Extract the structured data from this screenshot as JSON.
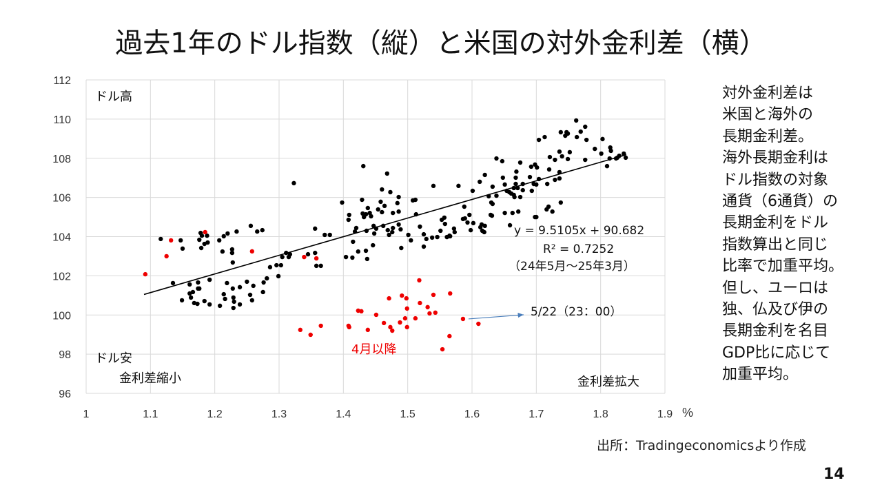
{
  "title": "過去1年のドル指数（縦）と米国の対外金利差（横）",
  "side_note": [
    "対外金利差は",
    "米国と海外の",
    "長期金利差。",
    "海外長期金利は",
    "ドル指数の対象",
    "通貨（6通貨）の",
    "長期金利をドル",
    "指数算出と同じ",
    "比率で加重平均。",
    "但し、ユーロは",
    "独、仏及び伊の",
    "長期金利を名目",
    "GDP比に応じて",
    "加重平均。"
  ],
  "source": "出所：Tradingeconomicsより作成",
  "page_number": "14",
  "colors": {
    "black_series": "#000000",
    "red_series": "#ee0000",
    "trend": "#000000",
    "arrow": "#4a7ebb",
    "grid": "#d9d9d9"
  },
  "chart_data": {
    "type": "scatter",
    "xlim": [
      1,
      1.9
    ],
    "ylim": [
      96,
      112
    ],
    "x_ticks": [
      "1",
      "1.1",
      "1.2",
      "1.3",
      "1.4",
      "1.5",
      "1.6",
      "1.7",
      "1.8",
      "1.9"
    ],
    "y_ticks": [
      "96",
      "98",
      "100",
      "102",
      "104",
      "106",
      "108",
      "110",
      "112"
    ],
    "x_unit": "%",
    "grid": true,
    "annotations": {
      "top_left": "ドル高",
      "bottom_left": "ドル安",
      "bottom_left_x": "金利差縮小",
      "bottom_right_x": "金利差拡大",
      "red_label": "4月以降",
      "equation": "y = 9.5105x + 90.682",
      "r2": "R² = 0.7252",
      "period": "（24年5月～25年3月）",
      "latest_label": "5/22（23：00）"
    },
    "trendline": {
      "slope": 9.5105,
      "intercept": 90.682,
      "x_range": [
        1.09,
        1.84
      ],
      "r2": 0.7252
    },
    "series": [
      {
        "name": "24年5月～25年3月",
        "color": "#000000",
        "points": [
          [
            1.116,
            103.88
          ],
          [
            1.147,
            103.81
          ],
          [
            1.15,
            103.39
          ],
          [
            1.178,
            104.19
          ],
          [
            1.18,
            104.05
          ],
          [
            1.188,
            104.05
          ],
          [
            1.176,
            103.84
          ],
          [
            1.179,
            103.42
          ],
          [
            1.184,
            103.63
          ],
          [
            1.189,
            103.7
          ],
          [
            1.207,
            103.81
          ],
          [
            1.214,
            104.02
          ],
          [
            1.22,
            104.16
          ],
          [
            1.234,
            104.26
          ],
          [
            1.256,
            104.55
          ],
          [
            1.266,
            104.26
          ],
          [
            1.274,
            104.33
          ],
          [
            1.212,
            103.24
          ],
          [
            1.227,
            103.35
          ],
          [
            1.227,
            103.17
          ],
          [
            1.228,
            102.68
          ],
          [
            1.356,
            104.41
          ],
          [
            1.371,
            104.09
          ],
          [
            1.379,
            104.09
          ],
          [
            1.356,
            103.17
          ],
          [
            1.345,
            103.1
          ],
          [
            1.358,
            102.51
          ],
          [
            1.365,
            102.51
          ],
          [
            1.311,
            103.17
          ],
          [
            1.317,
            103.1
          ],
          [
            1.305,
            102.96
          ],
          [
            1.315,
            102.96
          ],
          [
            1.303,
            102.54
          ],
          [
            1.296,
            102.54
          ],
          [
            1.286,
            102.44
          ],
          [
            1.299,
            101.98
          ],
          [
            1.281,
            101.87
          ],
          [
            1.276,
            101.66
          ],
          [
            1.275,
            101.17
          ],
          [
            1.26,
            101.49
          ],
          [
            1.25,
            101.7
          ],
          [
            1.239,
            101.42
          ],
          [
            1.228,
            101.35
          ],
          [
            1.219,
            101.63
          ],
          [
            1.214,
            101.06
          ],
          [
            1.216,
            100.82
          ],
          [
            1.229,
            100.89
          ],
          [
            1.23,
            100.68
          ],
          [
            1.229,
            100.36
          ],
          [
            1.239,
            100.54
          ],
          [
            1.208,
            100.47
          ],
          [
            1.192,
            100.54
          ],
          [
            1.184,
            100.71
          ],
          [
            1.192,
            101.8
          ],
          [
            1.174,
            101.66
          ],
          [
            1.174,
            101.35
          ],
          [
            1.176,
            101.35
          ],
          [
            1.161,
            101.56
          ],
          [
            1.135,
            101.63
          ],
          [
            1.161,
            101.1
          ],
          [
            1.166,
            101.17
          ],
          [
            1.163,
            100.89
          ],
          [
            1.149,
            100.75
          ],
          [
            1.168,
            100.61
          ],
          [
            1.173,
            100.57
          ],
          [
            1.255,
            101.03
          ],
          [
            1.258,
            100.75
          ],
          [
            1.323,
            106.73
          ],
          [
            1.431,
            107.6
          ],
          [
            1.468,
            107.22
          ],
          [
            1.54,
            106.59
          ],
          [
            1.398,
            105.74
          ],
          [
            1.429,
            105.88
          ],
          [
            1.46,
            106.41
          ],
          [
            1.473,
            106.27
          ],
          [
            1.486,
            106.02
          ],
          [
            1.458,
            105.78
          ],
          [
            1.484,
            105.71
          ],
          [
            1.508,
            105.85
          ],
          [
            1.512,
            105.88
          ],
          [
            1.438,
            105.46
          ],
          [
            1.454,
            105.39
          ],
          [
            1.464,
            105.57
          ],
          [
            1.46,
            105.25
          ],
          [
            1.477,
            105.21
          ],
          [
            1.486,
            105.28
          ],
          [
            1.409,
            105.11
          ],
          [
            1.408,
            104.86
          ],
          [
            1.43,
            105.18
          ],
          [
            1.432,
            105.0
          ],
          [
            1.435,
            105.14
          ],
          [
            1.441,
            105.21
          ],
          [
            1.443,
            105.04
          ],
          [
            1.513,
            105.14
          ],
          [
            1.42,
            104.44
          ],
          [
            1.418,
            104.26
          ],
          [
            1.436,
            104.3
          ],
          [
            1.447,
            104.55
          ],
          [
            1.451,
            104.41
          ],
          [
            1.448,
            104.16
          ],
          [
            1.462,
            104.55
          ],
          [
            1.469,
            104.33
          ],
          [
            1.477,
            104.44
          ],
          [
            1.476,
            104.23
          ],
          [
            1.471,
            104.09
          ],
          [
            1.486,
            104.62
          ],
          [
            1.489,
            104.37
          ],
          [
            1.519,
            104.51
          ],
          [
            1.501,
            104.09
          ],
          [
            1.505,
            103.81
          ],
          [
            1.525,
            104.12
          ],
          [
            1.529,
            103.88
          ],
          [
            1.538,
            103.95
          ],
          [
            1.546,
            103.98
          ],
          [
            1.551,
            104.3
          ],
          [
            1.553,
            104.86
          ],
          [
            1.557,
            104.97
          ],
          [
            1.558,
            104.65
          ],
          [
            1.561,
            103.98
          ],
          [
            1.566,
            104.02
          ],
          [
            1.572,
            104.41
          ],
          [
            1.415,
            103.74
          ],
          [
            1.446,
            103.56
          ],
          [
            1.49,
            103.42
          ],
          [
            1.525,
            103.49
          ],
          [
            1.423,
            103.24
          ],
          [
            1.435,
            103.28
          ],
          [
            1.404,
            102.96
          ],
          [
            1.414,
            102.93
          ],
          [
            1.437,
            102.86
          ],
          [
            1.638,
            107.99
          ],
          [
            1.647,
            107.85
          ],
          [
            1.675,
            107.78
          ],
          [
            1.721,
            108.06
          ],
          [
            1.729,
            107.92
          ],
          [
            1.736,
            108.34
          ],
          [
            1.74,
            108.1
          ],
          [
            1.749,
            107.96
          ],
          [
            1.692,
            107.57
          ],
          [
            1.698,
            107.68
          ],
          [
            1.701,
            107.53
          ],
          [
            1.72,
            107.43
          ],
          [
            1.669,
            107.32
          ],
          [
            1.62,
            107.15
          ],
          [
            1.579,
            106.59
          ],
          [
            1.612,
            106.8
          ],
          [
            1.601,
            106.34
          ],
          [
            1.648,
            107.01
          ],
          [
            1.668,
            107.01
          ],
          [
            1.69,
            107.04
          ],
          [
            1.704,
            106.94
          ],
          [
            1.632,
            106.55
          ],
          [
            1.651,
            106.66
          ],
          [
            1.668,
            106.69
          ],
          [
            1.679,
            106.69
          ],
          [
            1.736,
            107.29
          ],
          [
            1.736,
            106.97
          ],
          [
            1.729,
            106.9
          ],
          [
            1.696,
            106.69
          ],
          [
            1.7,
            106.66
          ],
          [
            1.717,
            106.69
          ],
          [
            1.665,
            106.48
          ],
          [
            1.671,
            106.48
          ],
          [
            1.654,
            106.34
          ],
          [
            1.658,
            106.27
          ],
          [
            1.661,
            106.2
          ],
          [
            1.665,
            106.13
          ],
          [
            1.666,
            106.02
          ],
          [
            1.675,
            106.02
          ],
          [
            1.679,
            106.37
          ],
          [
            1.693,
            106.34
          ],
          [
            1.626,
            106.06
          ],
          [
            1.638,
            106.09
          ],
          [
            1.63,
            105.74
          ],
          [
            1.632,
            105.67
          ],
          [
            1.588,
            105.53
          ],
          [
            1.596,
            105.11
          ],
          [
            1.589,
            104.93
          ],
          [
            1.586,
            104.9
          ],
          [
            1.593,
            104.72
          ],
          [
            1.602,
            104.69
          ],
          [
            1.598,
            104.33
          ],
          [
            1.629,
            105.11
          ],
          [
            1.631,
            105.07
          ],
          [
            1.651,
            105.21
          ],
          [
            1.663,
            105.21
          ],
          [
            1.672,
            105.28
          ],
          [
            1.659,
            104.58
          ],
          [
            1.698,
            105.0
          ],
          [
            1.7,
            105.0
          ],
          [
            1.716,
            105.39
          ],
          [
            1.719,
            105.53
          ],
          [
            1.725,
            105.28
          ],
          [
            1.738,
            105.74
          ],
          [
            1.615,
            104.62
          ],
          [
            1.613,
            104.48
          ],
          [
            1.62,
            104.55
          ],
          [
            1.616,
            104.3
          ],
          [
            1.619,
            104.23
          ],
          [
            1.573,
            104.23
          ],
          [
            1.565,
            104.05
          ],
          [
            1.762,
            109.93
          ],
          [
            1.776,
            109.61
          ],
          [
            1.769,
            109.36
          ],
          [
            1.738,
            109.33
          ],
          [
            1.747,
            109.33
          ],
          [
            1.749,
            109.26
          ],
          [
            1.745,
            109.15
          ],
          [
            1.763,
            109.08
          ],
          [
            1.778,
            108.94
          ],
          [
            1.713,
            109.08
          ],
          [
            1.704,
            108.94
          ],
          [
            1.803,
            108.98
          ],
          [
            1.791,
            108.48
          ],
          [
            1.815,
            108.55
          ],
          [
            1.816,
            108.38
          ],
          [
            1.801,
            108.24
          ],
          [
            1.836,
            108.24
          ],
          [
            1.829,
            108.13
          ],
          [
            1.826,
            108.03
          ],
          [
            1.824,
            107.99
          ],
          [
            1.839,
            108.03
          ],
          [
            1.814,
            107.99
          ],
          [
            1.81,
            107.6
          ],
          [
            1.776,
            107.92
          ],
          [
            1.752,
            108.31
          ]
        ]
      },
      {
        "name": "4月以降",
        "color": "#ee0000",
        "points": [
          [
            1.092,
            102.08
          ],
          [
            1.125,
            103.0
          ],
          [
            1.132,
            103.81
          ],
          [
            1.185,
            104.23
          ],
          [
            1.258,
            103.25
          ],
          [
            1.339,
            102.96
          ],
          [
            1.358,
            102.89
          ],
          [
            1.333,
            99.24
          ],
          [
            1.349,
            98.99
          ],
          [
            1.365,
            99.45
          ],
          [
            1.408,
            99.45
          ],
          [
            1.409,
            99.38
          ],
          [
            1.423,
            100.22
          ],
          [
            1.428,
            100.19
          ],
          [
            1.438,
            99.24
          ],
          [
            1.451,
            100.01
          ],
          [
            1.463,
            99.59
          ],
          [
            1.471,
            100.85
          ],
          [
            1.473,
            99.38
          ],
          [
            1.476,
            99.2
          ],
          [
            1.488,
            99.62
          ],
          [
            1.491,
            100.99
          ],
          [
            1.498,
            100.85
          ],
          [
            1.499,
            100.33
          ],
          [
            1.496,
            99.83
          ],
          [
            1.499,
            99.38
          ],
          [
            1.512,
            99.83
          ],
          [
            1.518,
            101.77
          ],
          [
            1.519,
            100.61
          ],
          [
            1.531,
            100.4
          ],
          [
            1.534,
            100.08
          ],
          [
            1.54,
            101.03
          ],
          [
            1.543,
            100.12
          ],
          [
            1.554,
            98.25
          ],
          [
            1.565,
            98.92
          ],
          [
            1.566,
            101.1
          ],
          [
            1.586,
            99.8
          ],
          [
            1.61,
            99.55
          ]
        ]
      }
    ],
    "latest_point": [
      1.586,
      99.8
    ]
  }
}
